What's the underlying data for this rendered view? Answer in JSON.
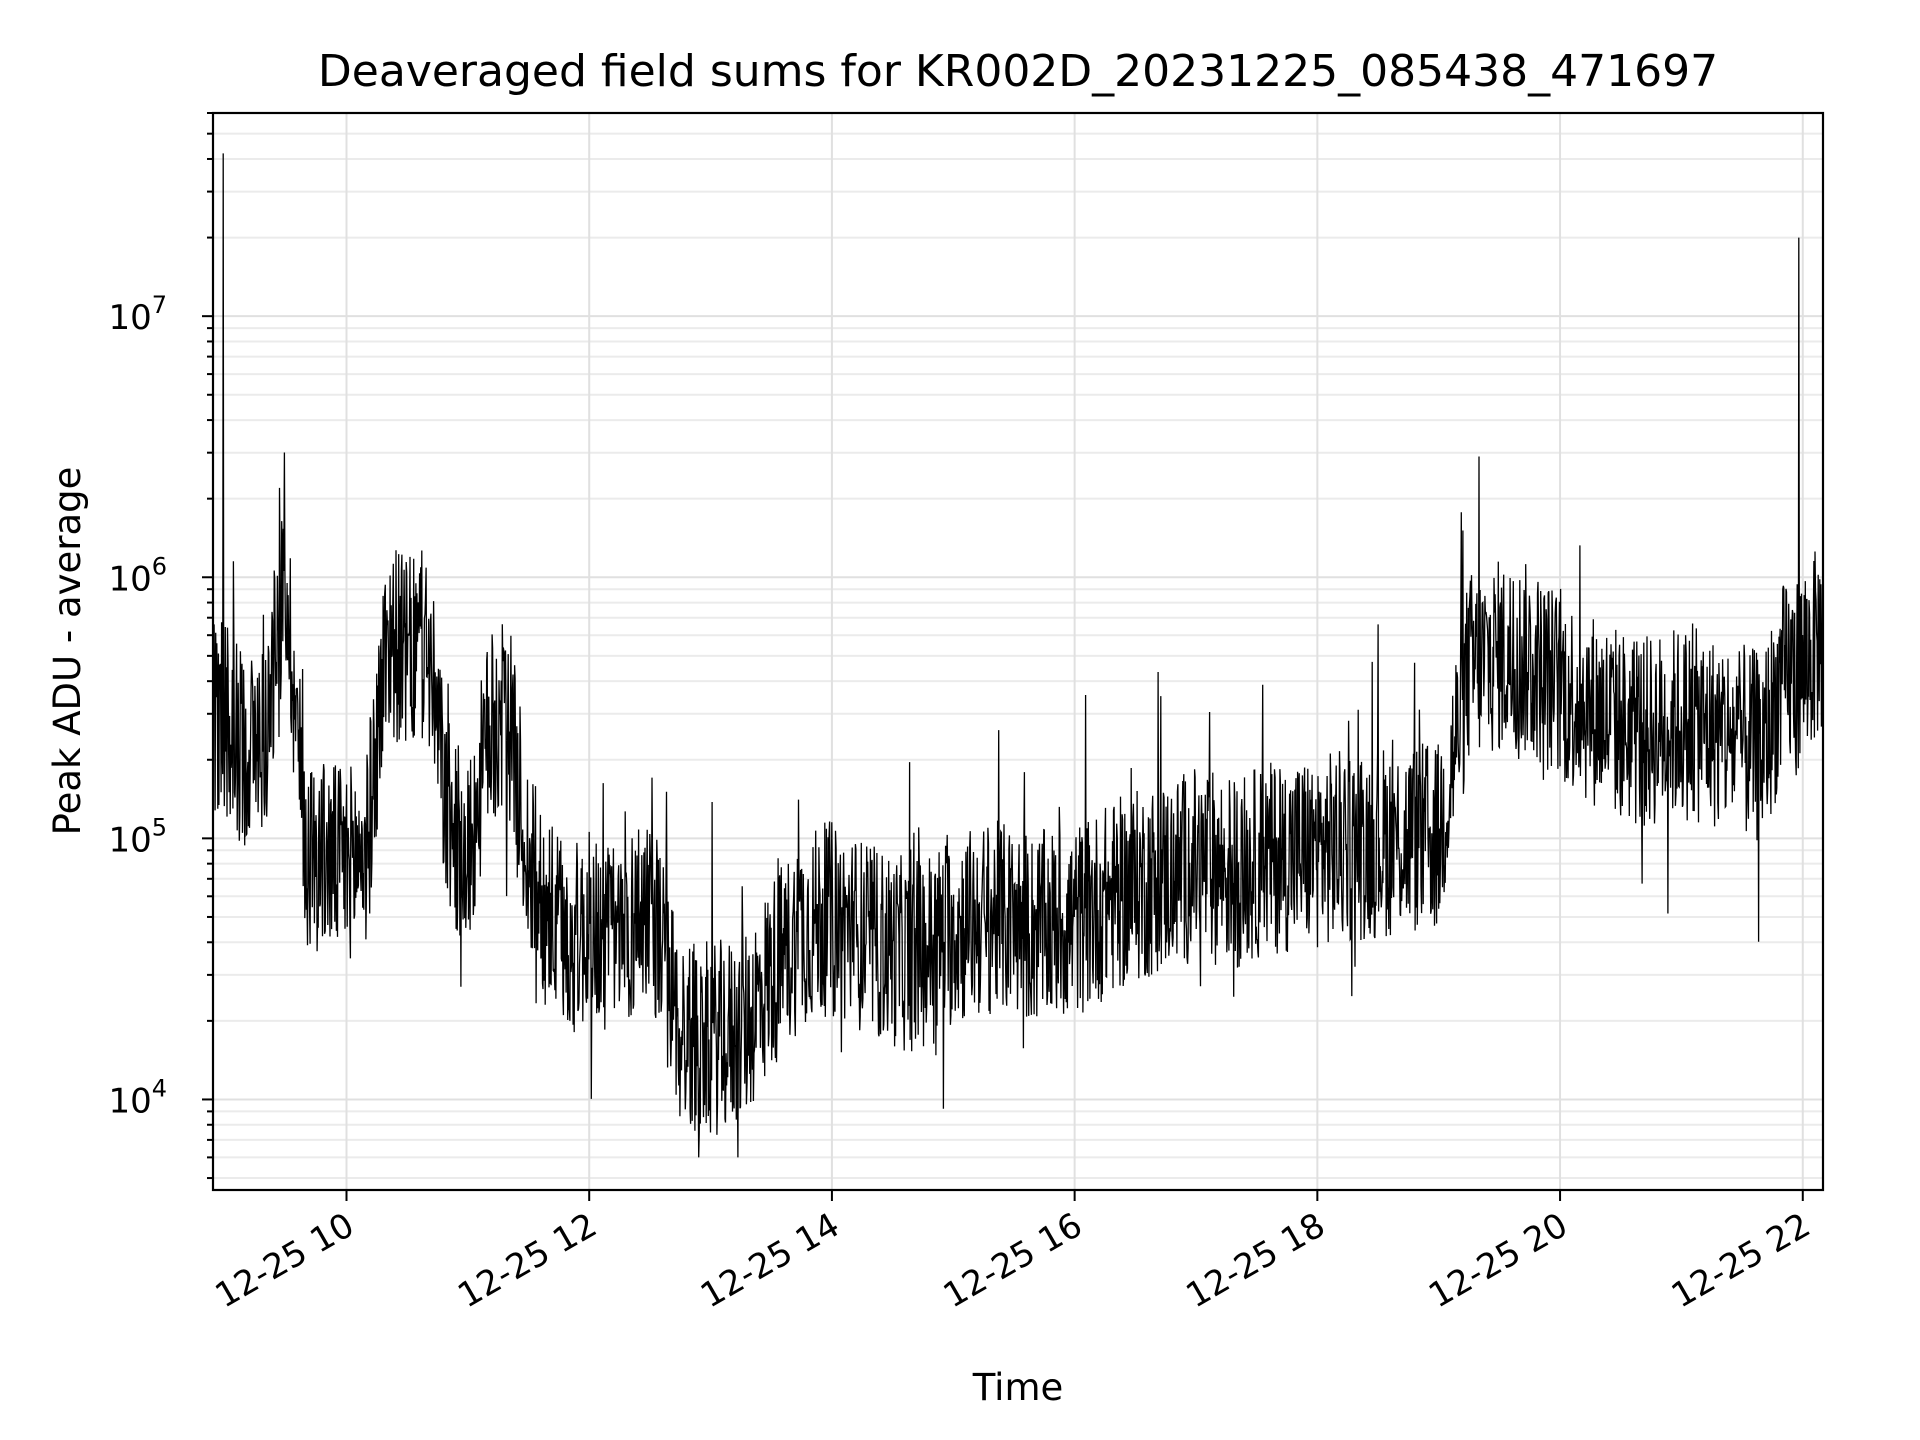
{
  "chart_data": {
    "type": "line",
    "title": "Deaveraged field sums for KR002D_20231225_085438_471697",
    "xlabel": "Time",
    "ylabel": "Peak ADU - average",
    "yscale": "log",
    "ylim": [
      4500,
      60000000
    ],
    "xlim": [
      "2023-12-25 08:54",
      "2023-12-25 22:10"
    ],
    "grid": true,
    "legend": "none",
    "line_color": "#000000",
    "x_ticks": [
      {
        "value": "2023-12-25 10:00",
        "label": "12-25 10"
      },
      {
        "value": "2023-12-25 12:00",
        "label": "12-25 12"
      },
      {
        "value": "2023-12-25 14:00",
        "label": "12-25 14"
      },
      {
        "value": "2023-12-25 16:00",
        "label": "12-25 16"
      },
      {
        "value": "2023-12-25 18:00",
        "label": "12-25 18"
      },
      {
        "value": "2023-12-25 20:00",
        "label": "12-25 20"
      },
      {
        "value": "2023-12-25 22:00",
        "label": "12-25 22"
      }
    ],
    "y_ticks": [
      {
        "value": 10000,
        "base": "10",
        "exp": "4"
      },
      {
        "value": 100000,
        "base": "10",
        "exp": "5"
      },
      {
        "value": 1000000,
        "base": "10",
        "exp": "6"
      },
      {
        "value": 10000000,
        "base": "10",
        "exp": "7"
      }
    ],
    "series": [
      {
        "x": [
          "2023-12-25 08:54",
          "2023-12-25 09:00",
          "2023-12-25 09:10",
          "2023-12-25 09:20",
          "2023-12-25 09:30",
          "2023-12-25 09:40",
          "2023-12-25 09:50",
          "2023-12-25 10:00",
          "2023-12-25 10:10",
          "2023-12-25 10:20",
          "2023-12-25 10:30",
          "2023-12-25 10:40",
          "2023-12-25 10:50",
          "2023-12-25 11:00",
          "2023-12-25 11:10",
          "2023-12-25 11:20",
          "2023-12-25 11:30",
          "2023-12-25 11:40",
          "2023-12-25 11:50",
          "2023-12-25 12:00",
          "2023-12-25 12:15",
          "2023-12-25 12:30",
          "2023-12-25 12:45",
          "2023-12-25 13:00",
          "2023-12-25 13:15",
          "2023-12-25 13:30",
          "2023-12-25 13:45",
          "2023-12-25 14:00",
          "2023-12-25 14:20",
          "2023-12-25 14:40",
          "2023-12-25 15:00",
          "2023-12-25 15:20",
          "2023-12-25 15:40",
          "2023-12-25 16:00",
          "2023-12-25 16:20",
          "2023-12-25 16:40",
          "2023-12-25 17:00",
          "2023-12-25 17:20",
          "2023-12-25 17:40",
          "2023-12-25 18:00",
          "2023-12-25 18:20",
          "2023-12-25 18:40",
          "2023-12-25 19:00",
          "2023-12-25 19:15",
          "2023-12-25 19:30",
          "2023-12-25 19:45",
          "2023-12-25 20:00",
          "2023-12-25 20:20",
          "2023-12-25 20:40",
          "2023-12-25 21:00",
          "2023-12-25 21:20",
          "2023-12-25 21:40",
          "2023-12-25 21:50",
          "2023-12-25 22:00",
          "2023-12-25 22:10"
        ],
        "y": [
          300000,
          280000,
          220000,
          250000,
          1000000,
          90000,
          85000,
          80000,
          90000,
          600000,
          500000,
          550000,
          120000,
          80000,
          250000,
          300000,
          80000,
          50000,
          40000,
          45000,
          40000,
          60000,
          18000,
          17000,
          18000,
          30000,
          45000,
          50000,
          40000,
          35000,
          45000,
          50000,
          45000,
          48000,
          60000,
          70000,
          80000,
          75000,
          85000,
          90000,
          95000,
          100000,
          100000,
          450000,
          500000,
          480000,
          380000,
          300000,
          250000,
          280000,
          250000,
          220000,
          400000,
          450000,
          600000
        ]
      }
    ],
    "spikes": [
      {
        "x": "2023-12-25 08:59",
        "y": 42000000
      },
      {
        "x": "2023-12-25 21:58",
        "y": 20000000
      },
      {
        "x": "2023-12-25 19:20",
        "y": 2900000
      },
      {
        "x": "2023-12-25 09:27",
        "y": 2200000
      }
    ]
  }
}
